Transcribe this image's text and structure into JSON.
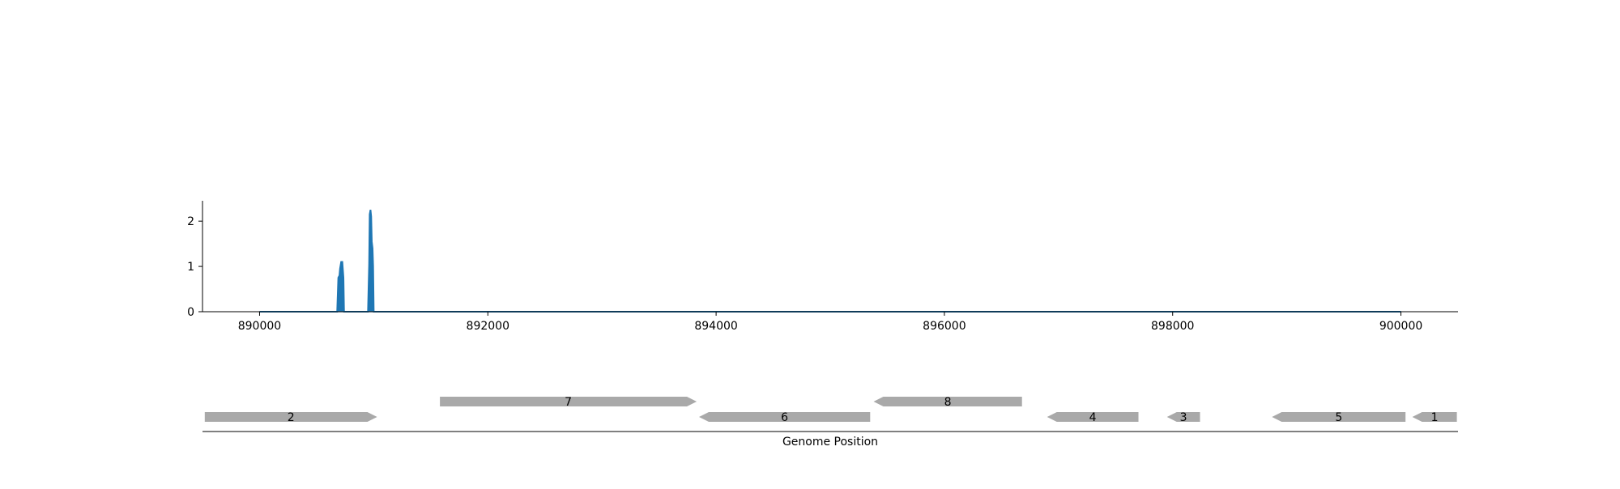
{
  "chart_data": {
    "type": "area",
    "xlim": [
      889500,
      900500
    ],
    "ylim": [
      0,
      2.45
    ],
    "x_ticks": [
      {
        "value": 890000,
        "label": "890000"
      },
      {
        "value": 892000,
        "label": "892000"
      },
      {
        "value": 894000,
        "label": "894000"
      },
      {
        "value": 896000,
        "label": "896000"
      },
      {
        "value": 898000,
        "label": "898000"
      },
      {
        "value": 900000,
        "label": "900000"
      }
    ],
    "y_ticks": [
      {
        "value": 0,
        "label": "0"
      },
      {
        "value": 1,
        "label": "1"
      },
      {
        "value": 2,
        "label": "2"
      }
    ],
    "color": "#1f77b4",
    "signal": [
      {
        "x": 890000,
        "y": 0
      },
      {
        "x": 890680,
        "y": 0
      },
      {
        "x": 890690,
        "y": 0.75
      },
      {
        "x": 890700,
        "y": 0.8
      },
      {
        "x": 890705,
        "y": 0.95
      },
      {
        "x": 890715,
        "y": 1.1
      },
      {
        "x": 890725,
        "y": 1.1
      },
      {
        "x": 890735,
        "y": 0.75
      },
      {
        "x": 890740,
        "y": 0
      },
      {
        "x": 890950,
        "y": 0
      },
      {
        "x": 890960,
        "y": 1.05
      },
      {
        "x": 890965,
        "y": 2.15
      },
      {
        "x": 890972,
        "y": 2.25
      },
      {
        "x": 890978,
        "y": 2.1
      },
      {
        "x": 890983,
        "y": 1.55
      },
      {
        "x": 890990,
        "y": 1.4
      },
      {
        "x": 890995,
        "y": 1.0
      },
      {
        "x": 891000,
        "y": 0
      },
      {
        "x": 900000,
        "y": 0
      }
    ],
    "genes": {
      "color": "#a9a9a9",
      "xlabel": "Genome Position",
      "items": [
        {
          "label": "2",
          "start": 889520,
          "end": 891030,
          "strand": "+",
          "row": 0
        },
        {
          "label": "7",
          "start": 891580,
          "end": 893830,
          "strand": "+",
          "row": 1
        },
        {
          "label": "6",
          "start": 893850,
          "end": 895350,
          "strand": "-",
          "row": 0
        },
        {
          "label": "8",
          "start": 895380,
          "end": 896680,
          "strand": "-",
          "row": 1
        },
        {
          "label": "4",
          "start": 896900,
          "end": 897700,
          "strand": "-",
          "row": 0
        },
        {
          "label": "3",
          "start": 897950,
          "end": 898240,
          "strand": "-",
          "row": 0
        },
        {
          "label": "5",
          "start": 898870,
          "end": 900040,
          "strand": "-",
          "row": 0
        },
        {
          "label": "1",
          "start": 900100,
          "end": 900490,
          "strand": "-",
          "row": 0
        }
      ]
    }
  }
}
